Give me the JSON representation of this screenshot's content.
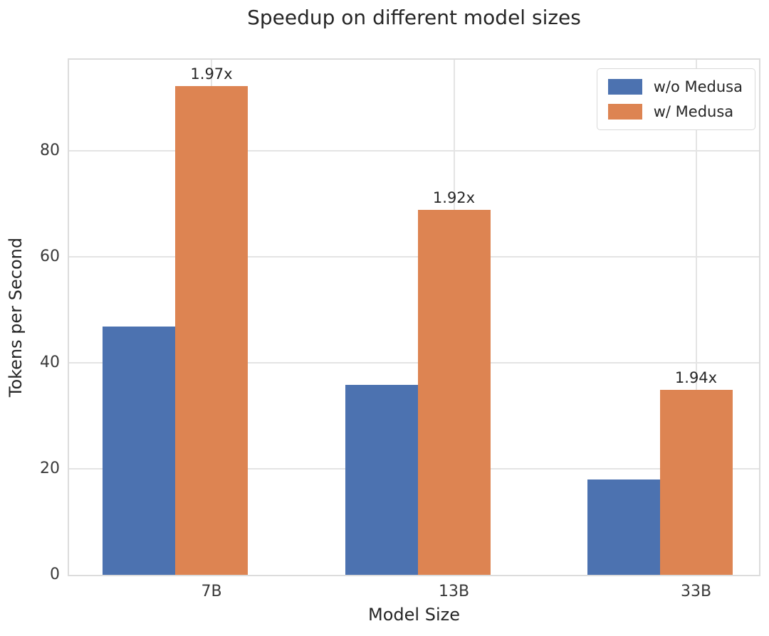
{
  "chart_data": {
    "type": "bar",
    "title": "Speedup on different model sizes",
    "xlabel": "Model Size",
    "ylabel": "Tokens per Second",
    "categories": [
      "7B",
      "13B",
      "33B"
    ],
    "series": [
      {
        "name": "w/o Medusa",
        "color": "#4C72B0",
        "values": [
          46.8,
          35.9,
          18.0
        ]
      },
      {
        "name": "w/ Medusa",
        "color": "#DD8452",
        "values": [
          92.2,
          68.9,
          34.9
        ]
      }
    ],
    "bar_annotations": {
      "on_series": "w/ Medusa",
      "labels": [
        "1.97x",
        "1.92x",
        "1.94x"
      ]
    },
    "yticks": [
      0,
      20,
      40,
      60,
      80
    ],
    "ylim": [
      0,
      97.2
    ],
    "grid": true,
    "legend_position": "upper right"
  },
  "colors": {
    "text": "#262626",
    "tick_text": "#3a3a3a",
    "grid": "#e4e4e4",
    "frame": "#dcdcdc",
    "background": "#ffffff"
  }
}
